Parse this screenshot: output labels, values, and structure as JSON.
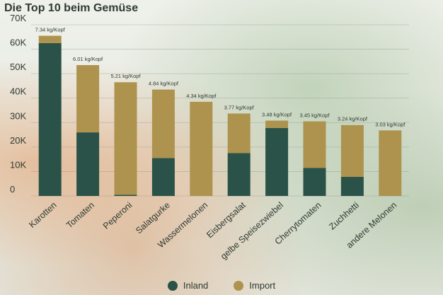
{
  "title": "Die Top 10 beim Gemüse",
  "chart_data": {
    "type": "bar",
    "stacked": true,
    "title": "Die Top 10 beim Gemüse",
    "categories": [
      "Karotten",
      "Tomaten",
      "Peperoni",
      "Salatgurke",
      "Wassermelonen",
      "Eisbergsalat",
      "gelbe Speisezwiebel",
      "Cherrytomaten",
      "Zuchhetti",
      "andere Melonen"
    ],
    "series": [
      {
        "name": "Inland",
        "color": "#2b5248",
        "values": [
          62500,
          26000,
          500,
          15500,
          0,
          17500,
          27800,
          11500,
          7800,
          0
        ]
      },
      {
        "name": "Import",
        "color": "#ad934e",
        "values": [
          3000,
          27500,
          46000,
          28000,
          38500,
          16200,
          3000,
          19000,
          21200,
          26800
        ]
      }
    ],
    "bar_labels": [
      "7.34 kg/Kopf",
      "6.01 kg/Kopf",
      "5.21 kg/Kopf",
      "4.84 kg/Kopf",
      "4.34 kg/Kopf",
      "3.77 kg/Kopf",
      "3.48 kg/Kopf",
      "3.45 kg/Kopf",
      "3.24 kg/Kopf",
      "3.03 kg/Kopf"
    ],
    "y_ticks": [
      "0",
      "10K",
      "20K",
      "30K",
      "40K",
      "50K",
      "60K",
      "70K"
    ],
    "ylim": [
      0,
      70000
    ],
    "grid": true,
    "legend": "bottom"
  }
}
